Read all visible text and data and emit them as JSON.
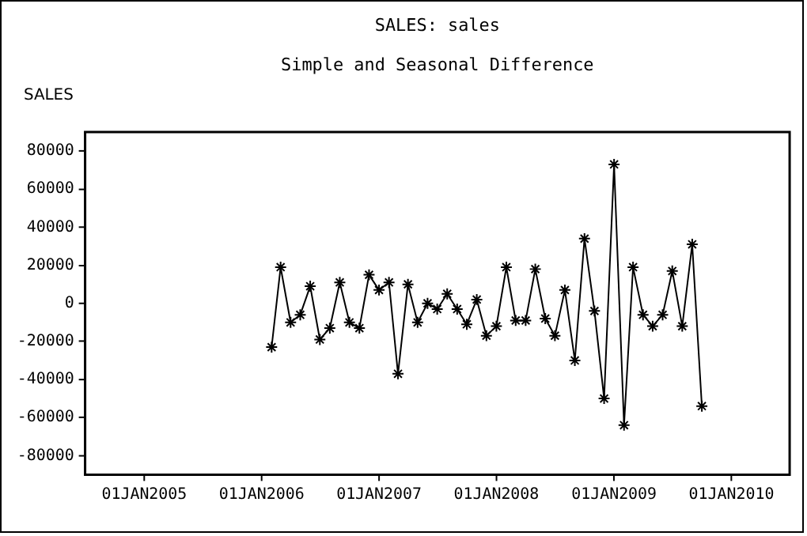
{
  "chart_data": {
    "type": "line",
    "title": "SALES: sales",
    "subtitle": "Simple and Seasonal Difference",
    "ylabel": "SALES",
    "x": [
      "2006-02",
      "2006-03",
      "2006-04",
      "2006-05",
      "2006-06",
      "2006-07",
      "2006-08",
      "2006-09",
      "2006-10",
      "2006-11",
      "2006-12",
      "2007-01",
      "2007-02",
      "2007-03",
      "2007-04",
      "2007-05",
      "2007-06",
      "2007-07",
      "2007-08",
      "2007-09",
      "2007-10",
      "2007-11",
      "2007-12",
      "2008-01",
      "2008-02",
      "2008-03",
      "2008-04",
      "2008-05",
      "2008-06",
      "2008-07",
      "2008-08",
      "2008-09",
      "2008-10",
      "2008-11",
      "2008-12",
      "2009-01",
      "2009-02",
      "2009-03",
      "2009-04",
      "2009-05",
      "2009-06",
      "2009-07",
      "2009-08",
      "2009-09",
      "2009-10"
    ],
    "series": [
      {
        "color": "#000000",
        "values": [
          -23000,
          19000,
          -10000,
          -6000,
          9000,
          -19000,
          -13000,
          11000,
          -10000,
          -13000,
          15000,
          7000,
          11000,
          -37000,
          10000,
          -10000,
          0,
          -3000,
          5000,
          -3000,
          -11000,
          2000,
          -17000,
          -12000,
          19000,
          -9000,
          -9000,
          18000,
          -8000,
          -17000,
          7000,
          -30000,
          34000,
          -4000,
          -50000,
          73000,
          -64000,
          19000,
          -6000,
          -12000,
          -6000,
          17000,
          -12000,
          31000,
          -54000
        ]
      }
    ],
    "xlim": [
      "2004-07-01",
      "2010-07-01"
    ],
    "xticks": [
      {
        "value": "2005-01-01",
        "label": "01JAN2005"
      },
      {
        "value": "2006-01-01",
        "label": "01JAN2006"
      },
      {
        "value": "2007-01-01",
        "label": "01JAN2007"
      },
      {
        "value": "2008-01-01",
        "label": "01JAN2008"
      },
      {
        "value": "2009-01-01",
        "label": "01JAN2009"
      },
      {
        "value": "2010-01-01",
        "label": "01JAN2010"
      }
    ],
    "ylim": [
      -90000,
      90000
    ],
    "yticks": [
      -80000,
      -60000,
      -40000,
      -20000,
      0,
      20000,
      40000,
      60000,
      80000
    ],
    "grid": false,
    "legend": false,
    "marker": "cross",
    "line_style": "solid"
  }
}
